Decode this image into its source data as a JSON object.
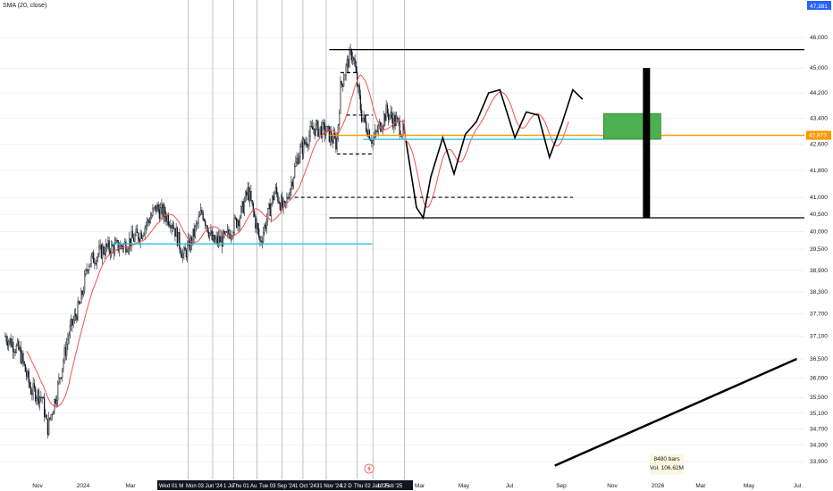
{
  "indicator": {
    "label": "SMA (20, close)"
  },
  "price_axis": {
    "ticks": [
      "46,000",
      "45,000",
      "44,200",
      "43,400",
      "42,600",
      "41,800",
      "41,000",
      "40,500",
      "40,000",
      "39,500",
      "38,900",
      "38,300",
      "37,700",
      "37,100",
      "36,500",
      "36,000",
      "35,500",
      "35,100",
      "34,700",
      "34,300",
      "33,900"
    ],
    "top_badge": "47,381",
    "current_price_badge": "42,873"
  },
  "time_axis": {
    "ticks": [
      "Nov",
      "2024",
      "Mar",
      "May",
      "Jul",
      "Sep",
      "Nov",
      "2026",
      "Mar",
      "May",
      "Jul"
    ],
    "highlighted": [
      "Wed 01 M",
      "Mon 03 Jun '24",
      "1 Ju",
      "Thu 01 Au",
      "Tue 03 Sep '24",
      "1 Oct '24",
      "31 Nov '24",
      "12 D",
      "Thu 02 Jan '25",
      "13 Feb '25"
    ],
    "partial_tick": "Mar"
  },
  "info_box": {
    "bars": "8480 bars",
    "volume": "Vol. 106.62M"
  },
  "colors": {
    "candle": "#131722",
    "sma": "#ef5350",
    "cyan_line": "#26c6da",
    "orange_line": "#ff9800",
    "green_box": "#4caf50",
    "axis_badge": "#2962ff",
    "highlight_bg": "#131722",
    "grid": "#e0e3eb",
    "projection": "#000000"
  },
  "icons": {
    "flash": "lightning-icon"
  },
  "chart_data": {
    "type": "candlestick",
    "title": "",
    "y_scale": "log",
    "ylim": [
      33700,
      47600
    ],
    "series": [
      {
        "name": "SMA (20, close)",
        "kind": "line"
      }
    ],
    "price_path_waypoints": [
      {
        "t": "2023-09-01",
        "v": 37100
      },
      {
        "t": "2023-09-20",
        "v": 36700
      },
      {
        "t": "2023-10-05",
        "v": 35700
      },
      {
        "t": "2023-10-20",
        "v": 35500
      },
      {
        "t": "2023-10-27",
        "v": 34700
      },
      {
        "t": "2023-11-08",
        "v": 35600
      },
      {
        "t": "2023-11-25",
        "v": 37200
      },
      {
        "t": "2023-12-10",
        "v": 38000
      },
      {
        "t": "2023-12-20",
        "v": 39100
      },
      {
        "t": "2024-01-10",
        "v": 39500
      },
      {
        "t": "2024-02-05",
        "v": 39600
      },
      {
        "t": "2024-02-28",
        "v": 39950
      },
      {
        "t": "2024-03-20",
        "v": 40700
      },
      {
        "t": "2024-04-10",
        "v": 40300
      },
      {
        "t": "2024-04-25",
        "v": 39300
      },
      {
        "t": "2024-05-05",
        "v": 39700
      },
      {
        "t": "2024-05-20",
        "v": 40600
      },
      {
        "t": "2024-06-03",
        "v": 39700
      },
      {
        "t": "2024-06-20",
        "v": 39800
      },
      {
        "t": "2024-07-10",
        "v": 40500
      },
      {
        "t": "2024-07-20",
        "v": 41200
      },
      {
        "t": "2024-08-05",
        "v": 39700
      },
      {
        "t": "2024-08-25",
        "v": 41200
      },
      {
        "t": "2024-09-06",
        "v": 40600
      },
      {
        "t": "2024-09-25",
        "v": 42300
      },
      {
        "t": "2024-10-15",
        "v": 43100
      },
      {
        "t": "2024-11-01",
        "v": 43000
      },
      {
        "t": "2024-11-15",
        "v": 42600
      },
      {
        "t": "2024-11-20",
        "v": 44400
      },
      {
        "t": "2024-12-01",
        "v": 45300
      },
      {
        "t": "2024-12-06",
        "v": 45500
      },
      {
        "t": "2024-12-18",
        "v": 43500
      },
      {
        "t": "2025-01-02",
        "v": 42700
      },
      {
        "t": "2025-01-20",
        "v": 43600
      },
      {
        "t": "2025-02-05",
        "v": 43200
      },
      {
        "t": "2025-02-13",
        "v": 42900
      }
    ],
    "projection_path": [
      {
        "t": "2025-02-15",
        "v": 42700
      },
      {
        "t": "2025-03-01",
        "v": 40700
      },
      {
        "t": "2025-03-10",
        "v": 40400
      },
      {
        "t": "2025-03-20",
        "v": 41600
      },
      {
        "t": "2025-04-05",
        "v": 42800
      },
      {
        "t": "2025-04-20",
        "v": 41700
      },
      {
        "t": "2025-05-05",
        "v": 42900
      },
      {
        "t": "2025-05-20",
        "v": 43300
      },
      {
        "t": "2025-06-05",
        "v": 44200
      },
      {
        "t": "2025-06-20",
        "v": 44300
      },
      {
        "t": "2025-07-10",
        "v": 42800
      },
      {
        "t": "2025-07-25",
        "v": 43600
      },
      {
        "t": "2025-08-10",
        "v": 43500
      },
      {
        "t": "2025-08-25",
        "v": 42200
      },
      {
        "t": "2025-09-10",
        "v": 43200
      },
      {
        "t": "2025-09-25",
        "v": 44300
      },
      {
        "t": "2025-10-08",
        "v": 44000
      }
    ],
    "horizontal_levels": [
      {
        "price": 45600,
        "style": "solid"
      },
      {
        "price": 40400,
        "style": "solid"
      },
      {
        "price": 42873,
        "style": "solid",
        "color": "orange"
      },
      {
        "price": 42750,
        "style": "solid",
        "color": "cyan"
      },
      {
        "price": 39650,
        "style": "solid",
        "color": "cyan"
      },
      {
        "price": 44850,
        "style": "dashed"
      },
      {
        "price": 43500,
        "style": "dashed"
      },
      {
        "price": 42300,
        "style": "dashed"
      },
      {
        "price": 41000,
        "style": "dashed"
      }
    ],
    "target_box": {
      "t_start": "2025-11-05",
      "t_end": "2026-01-20",
      "price_low": 42750,
      "price_high": 43550
    },
    "target_bar": {
      "t": "2026-01-01",
      "price_low": 40400,
      "price_high": 45000
    },
    "trend_line": [
      {
        "t": "2025-09-01",
        "v": 33800
      },
      {
        "t": "2026-07-20",
        "v": 36500
      }
    ]
  }
}
